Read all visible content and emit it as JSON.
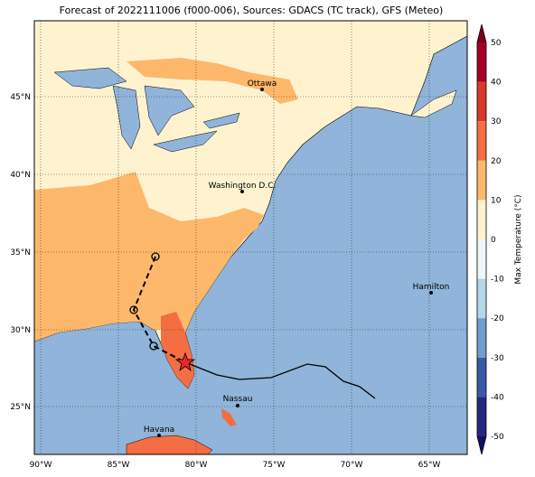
{
  "map": {
    "title": "Forecast of 2022111006 (f000-006), Sources: GDACS (TC track), GFS (Meteo)",
    "lon_labels": [
      "90°W",
      "85°W",
      "80°W",
      "75°W",
      "70°W",
      "65°W"
    ],
    "lat_labels": [
      "45°N",
      "40°N",
      "35°N",
      "30°N",
      "25°N"
    ],
    "cities": [
      "Ottawa",
      "Washington D.C.",
      "Hamilton",
      "Nassau",
      "Havana"
    ],
    "colorbar": {
      "label": "Max Temperature (°C)",
      "ticks": [
        50,
        40,
        30,
        20,
        10,
        0,
        -10,
        -20,
        -30,
        -40,
        -50
      ]
    }
  }
}
